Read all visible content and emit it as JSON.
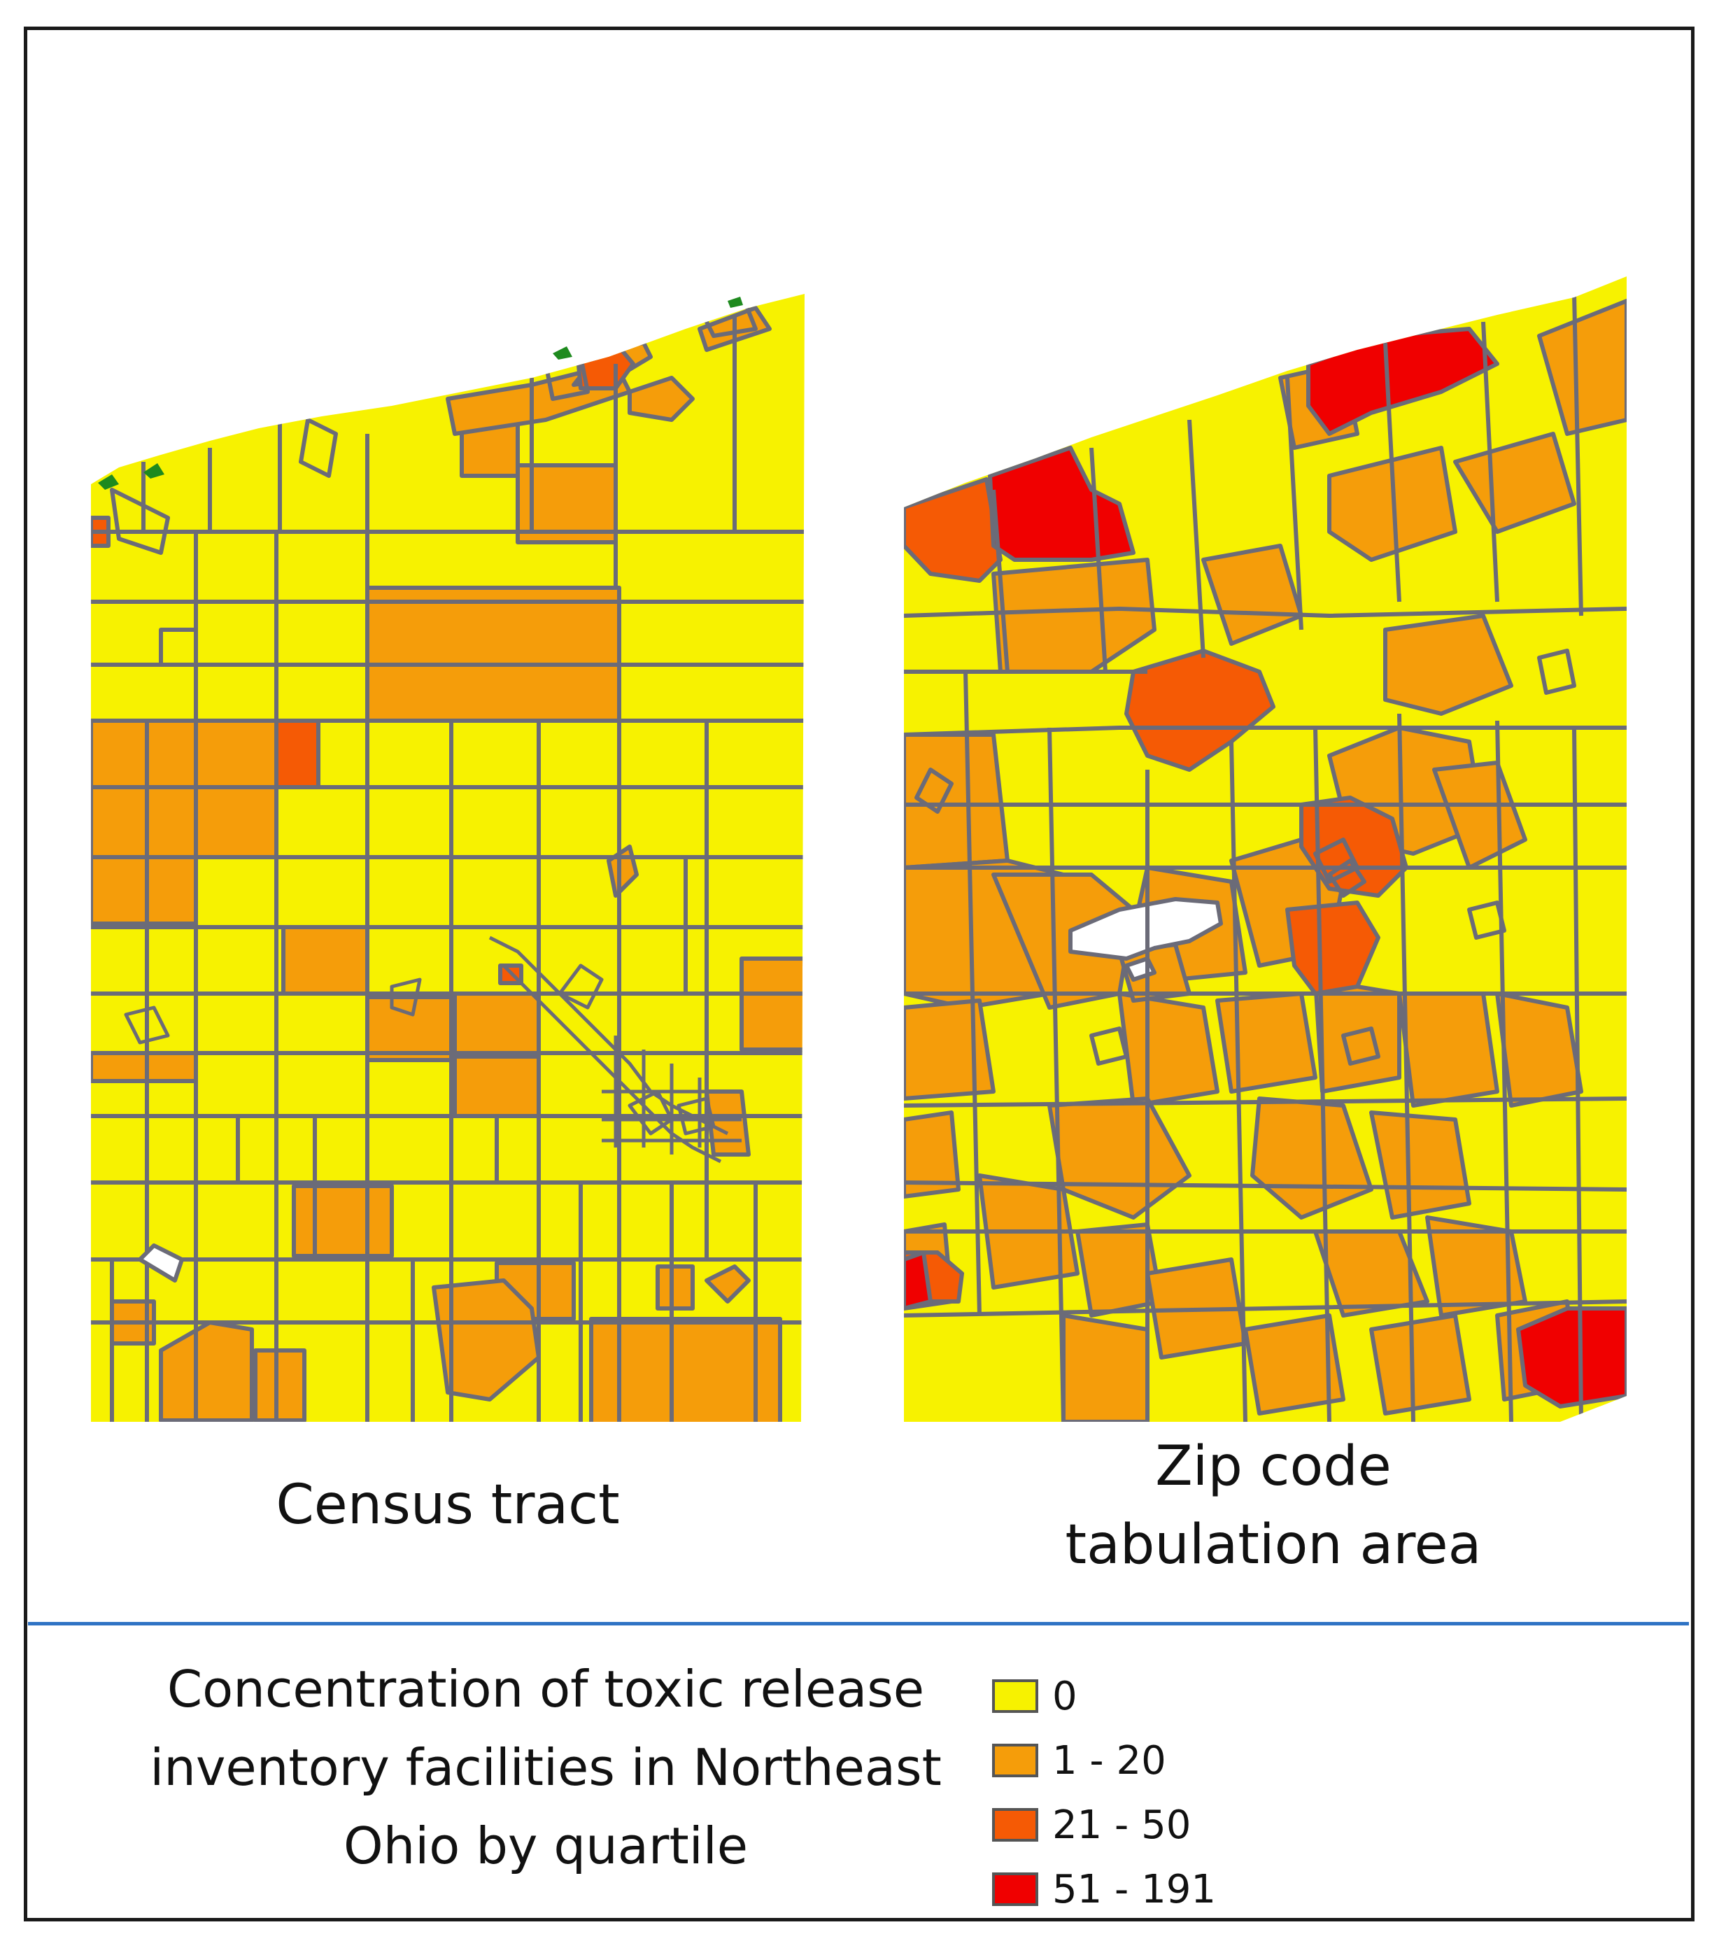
{
  "maps": [
    {
      "label": "Census tract"
    },
    {
      "label": "Zip code tabulation area"
    }
  ],
  "legend": {
    "title": "Concentration of toxic release inventory facilities in Northeast Ohio by quartile",
    "items": [
      {
        "label": "0",
        "color": "#f7f200"
      },
      {
        "label": "1 - 20",
        "color": "#f59d0a"
      },
      {
        "label": "21 - 50",
        "color": "#f55a05"
      },
      {
        "label": "51 - 191",
        "color": "#f00000"
      }
    ]
  },
  "colors": {
    "boundary": "#6b6b78",
    "divider": "#2f73c4",
    "water": "#ffffff",
    "shoreline_feature": "#1e8a1e"
  }
}
